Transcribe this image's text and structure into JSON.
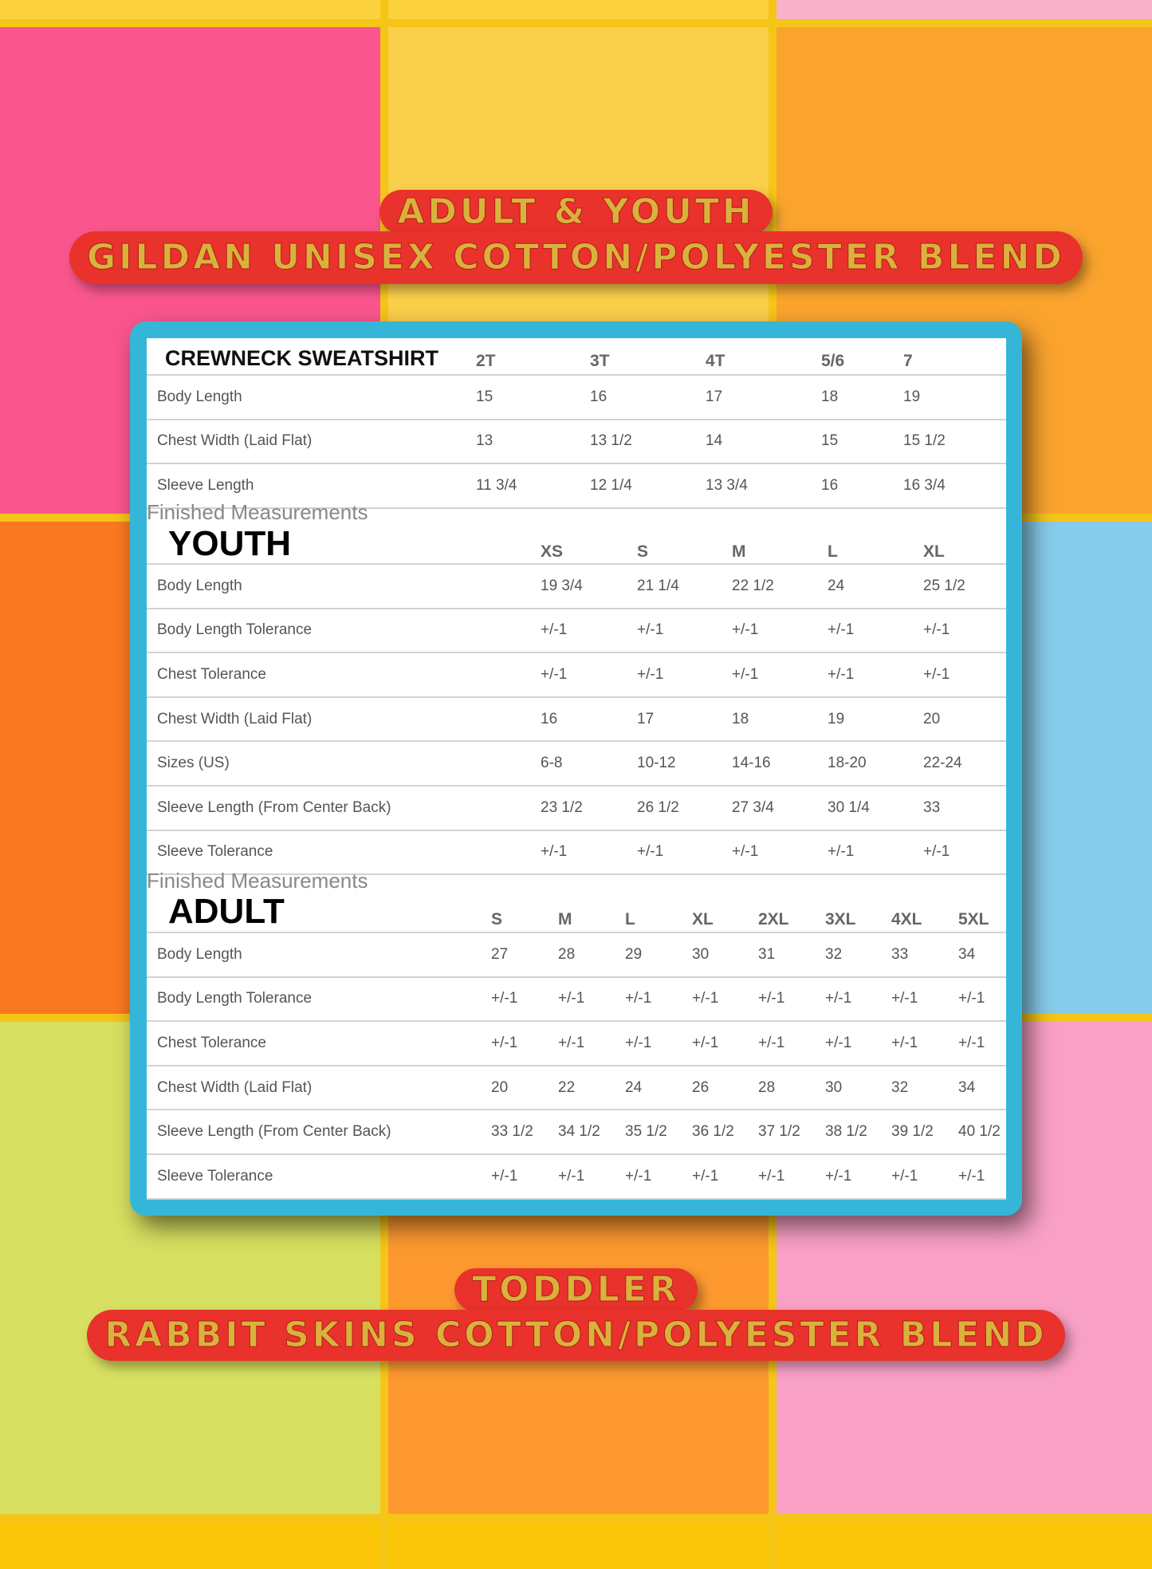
{
  "background": {
    "tile_colors": [
      "#f7d24a",
      "#f7d24a",
      "#f3b3c8",
      "#ef5a8c",
      "#f6cf57",
      "#f3a53a",
      "#f07a2a",
      "#f39a4c",
      "#8ccbe6",
      "#d8df6c",
      "#f59a3a",
      "#f2a2c4",
      "#f5c518",
      "#f5c518",
      "#f5c518"
    ]
  },
  "top_banner": {
    "line1": "Adult & Youth",
    "line2": "Gildan Unisex Cotton/Polyester Blend"
  },
  "bottom_banner": {
    "line1": "Toddler",
    "line2": "Rabbit Skins Cotton/Polyester Blend"
  },
  "colors": {
    "banner_fill": "#e8322b",
    "banner_text": "#d9b23c",
    "card_border": "#35b6d8"
  },
  "crewneck": {
    "title": "CREWNECK SWEATSHIRT",
    "sizes": [
      "2T",
      "3T",
      "4T",
      "5/6",
      "7"
    ],
    "rows": [
      {
        "label": "Body Length",
        "values": [
          "15",
          "16",
          "17",
          "18",
          "19"
        ]
      },
      {
        "label": "Chest Width (Laid Flat)",
        "values": [
          "13",
          "13 1/2",
          "14",
          "15",
          "15 1/2"
        ]
      },
      {
        "label": "Sleeve Length",
        "values": [
          "11 3/4",
          "12 1/4",
          "13 3/4",
          "16",
          "16 3/4"
        ]
      }
    ]
  },
  "youth": {
    "caption": "Finished Measurements",
    "title": "YOUTH",
    "sizes": [
      "XS",
      "S",
      "M",
      "L",
      "XL"
    ],
    "rows": [
      {
        "label": "Body Length",
        "values": [
          "19 3/4",
          "21 1/4",
          "22 1/2",
          "24",
          "25 1/2"
        ]
      },
      {
        "label": "Body Length Tolerance",
        "values": [
          "+/-1",
          "+/-1",
          "+/-1",
          "+/-1",
          "+/-1"
        ]
      },
      {
        "label": "Chest Tolerance",
        "values": [
          "+/-1",
          "+/-1",
          "+/-1",
          "+/-1",
          "+/-1"
        ]
      },
      {
        "label": "Chest Width (Laid Flat)",
        "values": [
          "16",
          "17",
          "18",
          "19",
          "20"
        ]
      },
      {
        "label": "Sizes (US)",
        "values": [
          "6-8",
          "10-12",
          "14-16",
          "18-20",
          "22-24"
        ]
      },
      {
        "label": "Sleeve Length (From Center Back)",
        "values": [
          "23 1/2",
          "26 1/2",
          "27 3/4",
          "30 1/4",
          "33"
        ]
      },
      {
        "label": "Sleeve Tolerance",
        "values": [
          "+/-1",
          "+/-1",
          "+/-1",
          "+/-1",
          "+/-1"
        ]
      }
    ]
  },
  "adult": {
    "caption": "Finished Measurements",
    "title": "ADULT",
    "sizes": [
      "S",
      "M",
      "L",
      "XL",
      "2XL",
      "3XL",
      "4XL",
      "5XL"
    ],
    "rows": [
      {
        "label": "Body Length",
        "values": [
          "27",
          "28",
          "29",
          "30",
          "31",
          "32",
          "33",
          "34"
        ]
      },
      {
        "label": "Body Length Tolerance",
        "values": [
          "+/-1",
          "+/-1",
          "+/-1",
          "+/-1",
          "+/-1",
          "+/-1",
          "+/-1",
          "+/-1"
        ]
      },
      {
        "label": "Chest Tolerance",
        "values": [
          "+/-1",
          "+/-1",
          "+/-1",
          "+/-1",
          "+/-1",
          "+/-1",
          "+/-1",
          "+/-1"
        ]
      },
      {
        "label": "Chest Width (Laid Flat)",
        "values": [
          "20",
          "22",
          "24",
          "26",
          "28",
          "30",
          "32",
          "34"
        ]
      },
      {
        "label": "Sleeve Length (From Center Back)",
        "values": [
          "33 1/2",
          "34 1/2",
          "35 1/2",
          "36 1/2",
          "37 1/2",
          "38 1/2",
          "39 1/2",
          "40 1/2"
        ]
      },
      {
        "label": "Sleeve Tolerance",
        "values": [
          "+/-1",
          "+/-1",
          "+/-1",
          "+/-1",
          "+/-1",
          "+/-1",
          "+/-1",
          "+/-1"
        ]
      }
    ]
  }
}
